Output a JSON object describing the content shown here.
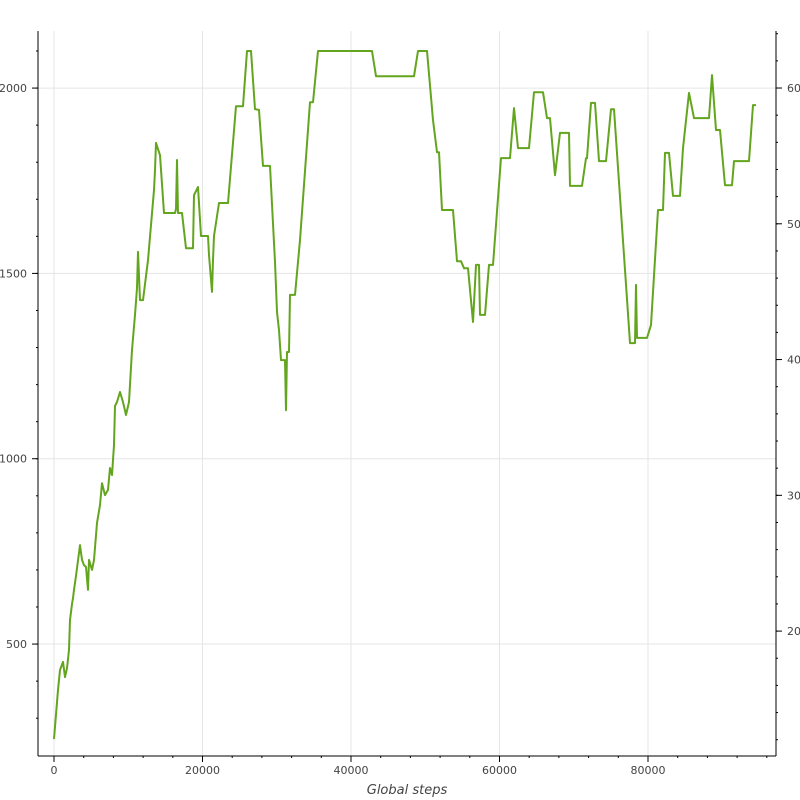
{
  "chart_data": {
    "type": "line",
    "title": "",
    "xlabel": "Global steps",
    "ylabel": "",
    "xlim": [
      -2155,
      97240
    ],
    "ylim": [
      198,
      2154
    ],
    "y2lim": [
      10.8,
      64.2
    ],
    "grid": true,
    "legend": "none",
    "line_color": "#63a51e",
    "x_ticks": [
      0,
      20000,
      40000,
      60000,
      80000
    ],
    "x_tick_labels": [
      "0",
      "20000",
      "40000",
      "60000",
      "80000"
    ],
    "y_ticks": [
      500,
      1000,
      1500,
      2000
    ],
    "y_tick_labels": [
      "500",
      "1000",
      "1500",
      "2000"
    ],
    "y2_ticks": [
      20,
      30,
      40,
      50,
      60
    ],
    "y2_tick_labels": [
      "20",
      "30",
      "40",
      "50",
      "60"
    ],
    "series": [
      {
        "x": [
          0,
          539,
          808,
          1212,
          1481,
          1751,
          2020,
          2155,
          2424,
          2559,
          2694,
          2963,
          3098,
          3502,
          3771,
          4040,
          4310,
          4579,
          4714,
          5118,
          5387,
          5791,
          6195,
          6465,
          6869,
          7273,
          7542,
          7811,
          8081,
          8215,
          8485,
          8889,
          9293,
          9697,
          10101,
          10505,
          10909,
          11178,
          11313,
          11582,
          11986,
          12660,
          13468,
          13603,
          13737,
          14276,
          14815,
          16296,
          16431,
          16566,
          16700,
          17239,
          17778,
          18721,
          18855,
          19394,
          19798,
          20741,
          20875,
          21279,
          21414,
          21549,
          22222,
          23434,
          24512,
          25455,
          25993,
          26532,
          27071,
          27609,
          28148,
          29091,
          29764,
          30034,
          30303,
          30572,
          31111,
          31246,
          31380,
          31650,
          31784,
          32458,
          33131,
          34478,
          34882,
          35556,
          42828,
          43367,
          48485,
          49023,
          50236,
          51044,
          51582,
          51852,
          52256,
          53737,
          54276,
          54815,
          55219,
          55758,
          56431,
          56835,
          57239,
          57374,
          58047,
          58586,
          59124,
          60202,
          61414,
          61953,
          62492,
          63973,
          64646,
          65859,
          66397,
          66801,
          67475,
          68148,
          69360,
          69495,
          71111,
          71650,
          71784,
          72323,
          72862,
          73401,
          74343,
          75017,
          75421,
          77576,
          78249,
          78384,
          78519,
          79866,
          80404,
          81347,
          82020,
          82290,
          82828,
          83367,
          84310,
          84714,
          85522,
          86195,
          88215,
          88619,
          89158,
          89697,
          90370,
          91313,
          91582,
          93602,
          94141,
          94545
        ],
        "y": [
          244,
          376,
          430,
          452,
          411,
          435,
          484,
          565,
          608,
          624,
          646,
          684,
          705,
          767,
          727,
          713,
          708,
          646,
          727,
          700,
          727,
          827,
          875,
          934,
          902,
          916,
          975,
          956,
          1037,
          1142,
          1153,
          1180,
          1153,
          1118,
          1153,
          1293,
          1388,
          1460,
          1558,
          1428,
          1428,
          1536,
          1725,
          1779,
          1852,
          1819,
          1663,
          1663,
          1674,
          1806,
          1663,
          1663,
          1568,
          1568,
          1711,
          1733,
          1601,
          1601,
          1550,
          1450,
          1536,
          1601,
          1690,
          1690,
          1951,
          1951,
          2100,
          2100,
          1943,
          1941,
          1790,
          1790,
          1531,
          1396,
          1347,
          1266,
          1266,
          1131,
          1288,
          1288,
          1442,
          1442,
          1590,
          1962,
          1962,
          2100,
          2100,
          2032,
          2032,
          2100,
          2100,
          1914,
          1827,
          1827,
          1671,
          1671,
          1533,
          1533,
          1514,
          1514,
          1369,
          1523,
          1523,
          1388,
          1388,
          1523,
          1523,
          1811,
          1811,
          1946,
          1838,
          1838,
          1989,
          1989,
          1919,
          1919,
          1765,
          1879,
          1879,
          1736,
          1736,
          1811,
          1811,
          1960,
          1960,
          1803,
          1803,
          1943,
          1943,
          1312,
          1312,
          1469,
          1326,
          1326,
          1361,
          1671,
          1671,
          1825,
          1825,
          1709,
          1709,
          1838,
          1987,
          1919,
          1919,
          2035,
          1887,
          1887,
          1738,
          1738,
          1803,
          1803,
          1954,
          1954
        ]
      }
    ]
  }
}
